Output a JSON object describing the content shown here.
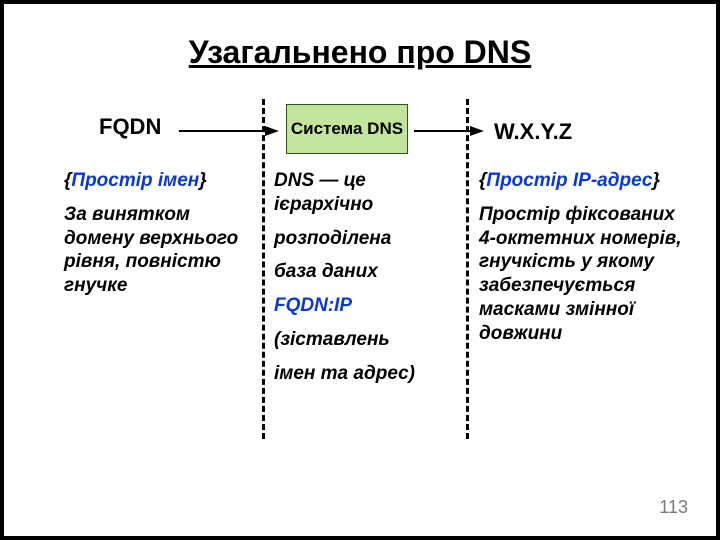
{
  "title": "Узагальнено про DNS",
  "page_number": "113",
  "headers": {
    "left": "FQDN",
    "right": "W.X.Y.Z",
    "box": "Система DNS"
  },
  "left_col": {
    "heading": "{Простір імен}",
    "body": "За винятком домену верхнього рівня, повністю гнучке"
  },
  "mid_col": {
    "l1": "DNS — це ієрархічно",
    "l2": "розподілена",
    "l3": "база даних",
    "l4": "FQDN:IP",
    "l5": "(зіставлень",
    "l6": "імен та адрес)"
  },
  "right_col": {
    "heading": "{Простір IP-адрес}",
    "body": "Простір фіксованих 4-октетних номерів, гнучкість у якому забезпечується масками змінної довжини"
  },
  "style": {
    "accent_blue": "#0a38d6",
    "box_fill": "#c2e49c",
    "box_border": "#2a5a10",
    "title_fontsize": 32,
    "header_fontsize": 22,
    "body_fontsize": 19,
    "pagenum_color": "#7a7a7a",
    "dash_color": "#000000",
    "background": "#ffffff"
  }
}
